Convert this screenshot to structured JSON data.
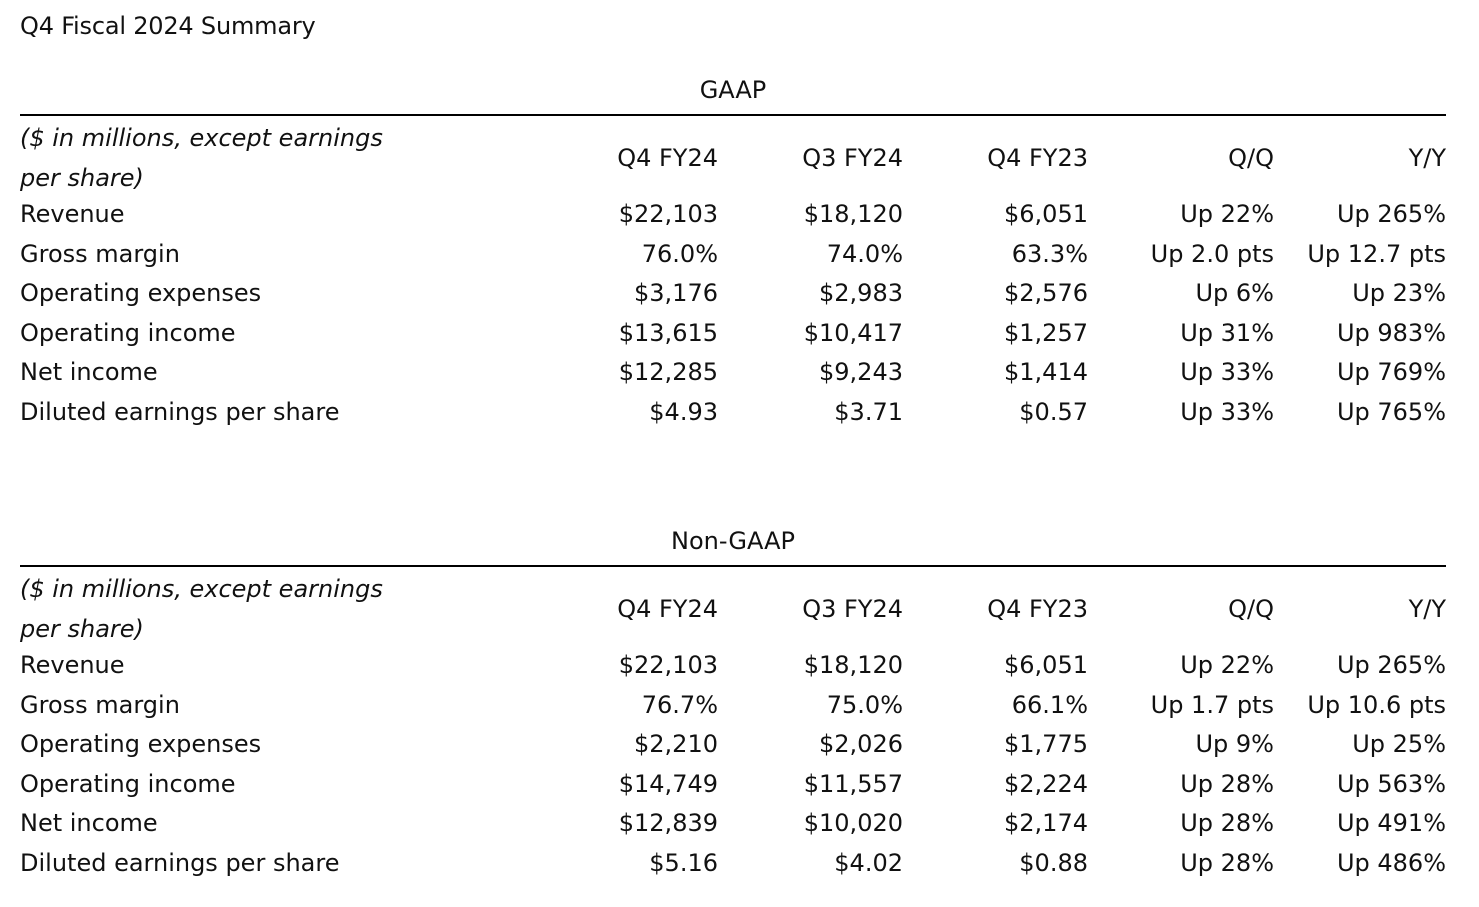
{
  "title": "Q4 Fiscal 2024 Summary",
  "header_label": "($ in millions, except earnings per share)",
  "columns": [
    "Q4 FY24",
    "Q3 FY24",
    "Q4 FY23",
    "Q/Q",
    "Y/Y"
  ],
  "gaap": {
    "heading": "GAAP",
    "rows": [
      {
        "label": "Revenue",
        "values": [
          "$22,103",
          "$18,120",
          "$6,051",
          "Up 22%",
          "Up 265%"
        ]
      },
      {
        "label": "Gross margin",
        "values": [
          "76.0%",
          "74.0%",
          "63.3%",
          "Up 2.0 pts",
          "Up 12.7 pts"
        ]
      },
      {
        "label": "Operating expenses",
        "values": [
          "$3,176",
          "$2,983",
          "$2,576",
          "Up 6%",
          "Up 23%"
        ]
      },
      {
        "label": "Operating income",
        "values": [
          "$13,615",
          "$10,417",
          "$1,257",
          "Up 31%",
          "Up 983%"
        ]
      },
      {
        "label": "Net income",
        "values": [
          "$12,285",
          "$9,243",
          "$1,414",
          "Up 33%",
          "Up 769%"
        ]
      },
      {
        "label": "Diluted earnings per share",
        "values": [
          "$4.93",
          "$3.71",
          "$0.57",
          "Up 33%",
          "Up 765%"
        ]
      }
    ]
  },
  "non_gaap": {
    "heading": "Non-GAAP",
    "rows": [
      {
        "label": "Revenue",
        "values": [
          "$22,103",
          "$18,120",
          "$6,051",
          "Up 22%",
          "Up 265%"
        ]
      },
      {
        "label": "Gross margin",
        "values": [
          "76.7%",
          "75.0%",
          "66.1%",
          "Up 1.7 pts",
          "Up 10.6 pts"
        ]
      },
      {
        "label": "Operating expenses",
        "values": [
          "$2,210",
          "$2,026",
          "$1,775",
          "Up 9%",
          "Up 25%"
        ]
      },
      {
        "label": "Operating income",
        "values": [
          "$14,749",
          "$11,557",
          "$2,224",
          "Up 28%",
          "Up 563%"
        ]
      },
      {
        "label": "Net income",
        "values": [
          "$12,839",
          "$10,020",
          "$2,174",
          "Up 28%",
          "Up 491%"
        ]
      },
      {
        "label": "Diluted earnings per share",
        "values": [
          "$5.16",
          "$4.02",
          "$0.88",
          "Up 28%",
          "Up 486%"
        ]
      }
    ]
  }
}
